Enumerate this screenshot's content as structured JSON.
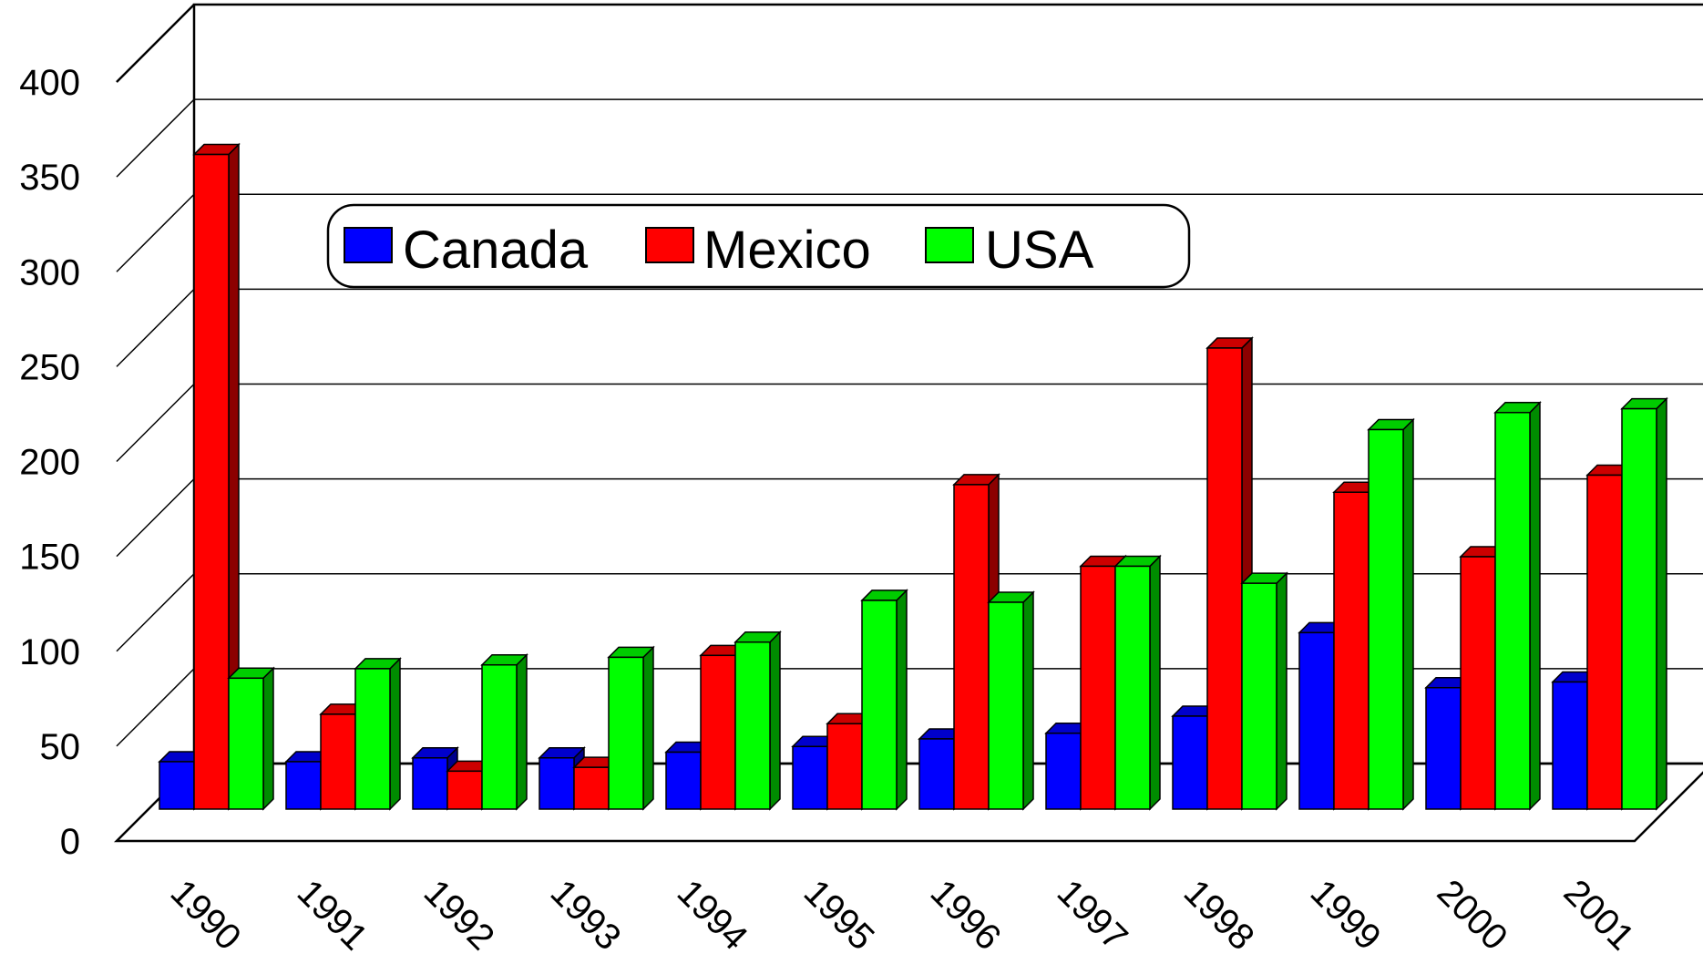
{
  "chart_data": {
    "type": "bar",
    "categories": [
      "1990",
      "1991",
      "1992",
      "1993",
      "1994",
      "1995",
      "1996",
      "1997",
      "1998",
      "1999",
      "2000",
      "2001"
    ],
    "series": [
      {
        "name": "Canada",
        "color": "#0000ff",
        "values": [
          25,
          25,
          27,
          27,
          30,
          33,
          37,
          40,
          49,
          93,
          64,
          67
        ]
      },
      {
        "name": "Mexico",
        "color": "#ff0000",
        "values": [
          345,
          50,
          20,
          22,
          81,
          45,
          171,
          128,
          243,
          167,
          133,
          176
        ]
      },
      {
        "name": "USA",
        "color": "#00ff00",
        "values": [
          69,
          74,
          76,
          80,
          88,
          110,
          109,
          128,
          119,
          200,
          209,
          211
        ]
      }
    ],
    "yticks": [
      "0",
      "50",
      "100",
      "150",
      "200",
      "250",
      "300",
      "350",
      "400"
    ],
    "ylim": [
      0,
      400
    ],
    "title": "",
    "xlabel": "",
    "ylabel": "",
    "grid": true,
    "legend": "top-left"
  }
}
